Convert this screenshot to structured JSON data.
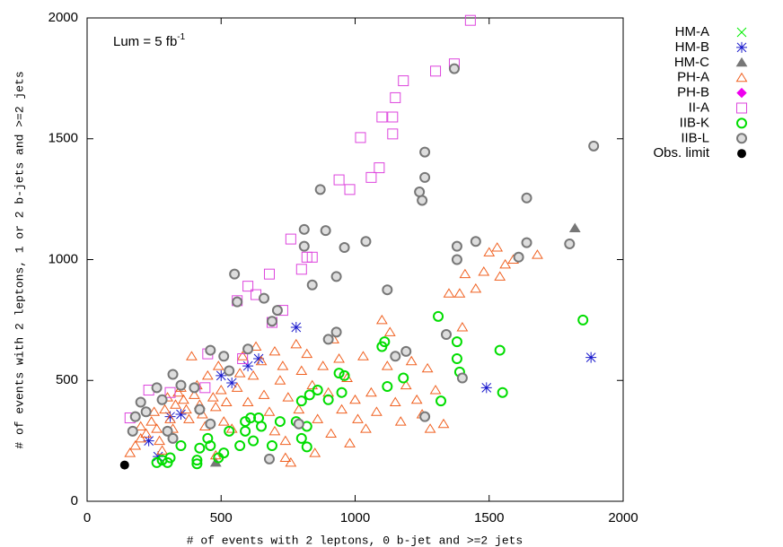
{
  "chart_data": {
    "type": "scatter",
    "xlabel": "# of events with 2 leptons, 0 b-jet and >=2 jets",
    "ylabel": "# of events with 2 leptons, 1 or 2 b-jets and >=2 jets",
    "annotation": {
      "text": "Lum = 5 fb",
      "sup": "-1"
    },
    "xlim": [
      0,
      2000
    ],
    "ylim": [
      0,
      2000
    ],
    "xticks": [
      0,
      500,
      1000,
      1500,
      2000
    ],
    "yticks": [
      0,
      500,
      1000,
      1500,
      2000
    ],
    "legend": "outside-right",
    "series": [
      {
        "name": "HM-A",
        "color": "#00ee00",
        "marker": "x",
        "x": [],
        "values": []
      },
      {
        "name": "HM-B",
        "color": "#1a1acc",
        "marker": "asterisk",
        "x": [
          230,
          265,
          310,
          350,
          500,
          540,
          600,
          640,
          780,
          1490,
          1880
        ],
        "values": [
          250,
          185,
          350,
          360,
          520,
          490,
          560,
          590,
          720,
          470,
          595
        ]
      },
      {
        "name": "HM-C",
        "color": "#777777",
        "marker": "triangle",
        "x": [
          1820,
          480
        ],
        "values": [
          1130,
          160
        ]
      },
      {
        "name": "PH-A",
        "color": "#f06020",
        "marker": "triangle-open",
        "x": [
          160,
          180,
          200,
          200,
          220,
          240,
          250,
          260,
          270,
          280,
          290,
          300,
          310,
          320,
          330,
          340,
          350,
          360,
          370,
          380,
          390,
          400,
          410,
          420,
          430,
          440,
          450,
          470,
          480,
          490,
          500,
          510,
          520,
          540,
          560,
          570,
          580,
          600,
          620,
          630,
          650,
          660,
          680,
          700,
          700,
          720,
          730,
          740,
          750,
          760,
          780,
          790,
          800,
          820,
          840,
          850,
          860,
          880,
          900,
          910,
          920,
          940,
          950,
          970,
          980,
          1000,
          1010,
          1030,
          1040,
          1060,
          1080,
          1100,
          1120,
          1130,
          1150,
          1170,
          1190,
          1210,
          1230,
          1250,
          1280,
          1300,
          1330,
          1350,
          1390,
          1410,
          1450,
          1480,
          1500,
          1530,
          1560,
          1590,
          1680,
          1540,
          1400,
          1270,
          740,
          480
        ],
        "values": [
          200,
          230,
          260,
          310,
          280,
          330,
          370,
          300,
          250,
          210,
          380,
          430,
          340,
          300,
          400,
          450,
          470,
          420,
          380,
          340,
          600,
          440,
          480,
          400,
          360,
          310,
          520,
          430,
          390,
          560,
          460,
          330,
          410,
          300,
          470,
          530,
          600,
          410,
          520,
          640,
          580,
          440,
          370,
          620,
          290,
          500,
          560,
          250,
          430,
          160,
          650,
          380,
          540,
          610,
          480,
          200,
          340,
          560,
          450,
          280,
          670,
          590,
          380,
          510,
          240,
          420,
          340,
          600,
          300,
          450,
          370,
          750,
          560,
          700,
          410,
          330,
          480,
          580,
          420,
          360,
          300,
          460,
          320,
          860,
          860,
          940,
          880,
          950,
          1030,
          1050,
          980,
          1000,
          1020,
          930,
          720,
          550,
          180,
          190
        ]
      },
      {
        "name": "PH-B",
        "color": "#ee00ee",
        "marker": "diamond",
        "x": [],
        "values": []
      },
      {
        "name": "II-A",
        "color": "#dd44dd",
        "marker": "square-open",
        "x": [
          1430,
          1370,
          1300,
          1180,
          1150,
          1100,
          1140,
          1140,
          1020,
          1090,
          1060,
          940,
          980,
          760,
          820,
          840,
          800,
          680,
          600,
          630,
          560,
          730,
          690,
          580,
          450,
          440,
          230,
          310,
          160
        ],
        "values": [
          1990,
          1810,
          1780,
          1740,
          1670,
          1590,
          1590,
          1520,
          1505,
          1380,
          1340,
          1330,
          1290,
          1085,
          1010,
          1010,
          960,
          940,
          890,
          855,
          830,
          790,
          740,
          590,
          610,
          470,
          460,
          450,
          345
        ]
      },
      {
        "name": "IIB-K",
        "color": "#00dd00",
        "marker": "circle-open",
        "x": [
          1850,
          1310,
          1540,
          1380,
          1380,
          1390,
          1100,
          1110,
          1320,
          1550,
          1180,
          1120,
          940,
          960,
          950,
          800,
          900,
          860,
          830,
          780,
          820,
          800,
          820,
          720,
          650,
          610,
          640,
          590,
          590,
          530,
          510,
          490,
          460,
          450,
          420,
          410,
          410,
          350,
          300,
          310,
          260,
          280,
          620,
          690,
          570
        ],
        "values": [
          750,
          765,
          625,
          660,
          590,
          535,
          640,
          660,
          415,
          450,
          510,
          475,
          530,
          520,
          450,
          415,
          420,
          460,
          440,
          330,
          310,
          260,
          225,
          330,
          310,
          345,
          345,
          330,
          290,
          290,
          200,
          180,
          230,
          260,
          220,
          170,
          155,
          230,
          160,
          180,
          160,
          170,
          250,
          230,
          230
        ]
      },
      {
        "name": "IIB-L",
        "color": "#777777",
        "marker": "circle-gray",
        "x": [
          1370,
          1890,
          1260,
          1260,
          1240,
          1250,
          1640,
          870,
          810,
          890,
          810,
          960,
          1040,
          1380,
          1450,
          1640,
          1800,
          1610,
          1380,
          550,
          930,
          840,
          660,
          560,
          710,
          1120,
          1340,
          930,
          900,
          690,
          1400,
          1190,
          1150,
          1260,
          680,
          600,
          460,
          510,
          530,
          320,
          260,
          280,
          200,
          220,
          180,
          300,
          320,
          170,
          400,
          350,
          420,
          460,
          790
        ],
        "values": [
          1790,
          1470,
          1445,
          1340,
          1280,
          1245,
          1255,
          1290,
          1125,
          1120,
          1055,
          1050,
          1075,
          1055,
          1075,
          1070,
          1065,
          1010,
          1000,
          940,
          930,
          895,
          840,
          825,
          790,
          875,
          690,
          700,
          670,
          745,
          510,
          620,
          600,
          350,
          175,
          630,
          625,
          600,
          540,
          525,
          470,
          420,
          410,
          370,
          350,
          290,
          260,
          290,
          470,
          480,
          380,
          320,
          320
        ]
      },
      {
        "name": "Obs. limit",
        "color": "#000000",
        "marker": "circle-filled",
        "x": [
          140
        ],
        "values": [
          150
        ]
      }
    ]
  }
}
